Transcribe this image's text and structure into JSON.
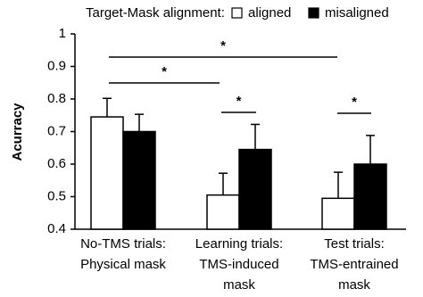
{
  "chart_data": {
    "type": "bar",
    "y_label": "Acurracy",
    "legend_title": "Target-Mask alignment:",
    "categories": [
      [
        "No-TMS trials:",
        "Physical mask"
      ],
      [
        "Learning trials:",
        "TMS-induced",
        "mask"
      ],
      [
        "Test trials:",
        "TMS-entrained",
        "mask"
      ]
    ],
    "series": [
      {
        "name": "aligned",
        "color": "#ffffff",
        "values": [
          0.745,
          0.505,
          0.495
        ],
        "errors": [
          0.057,
          0.067,
          0.08
        ]
      },
      {
        "name": "misaligned",
        "color": "#000000",
        "values": [
          0.7,
          0.645,
          0.6
        ],
        "errors": [
          0.053,
          0.077,
          0.088
        ]
      }
    ],
    "ylim": [
      0.4,
      1
    ],
    "yticks": [
      0.4,
      0.5,
      0.6,
      0.7,
      0.8,
      0.9,
      1
    ],
    "annotations": [
      {
        "text": "*"
      },
      {
        "text": "*"
      },
      {
        "text": "*"
      },
      {
        "text": "*"
      }
    ]
  }
}
